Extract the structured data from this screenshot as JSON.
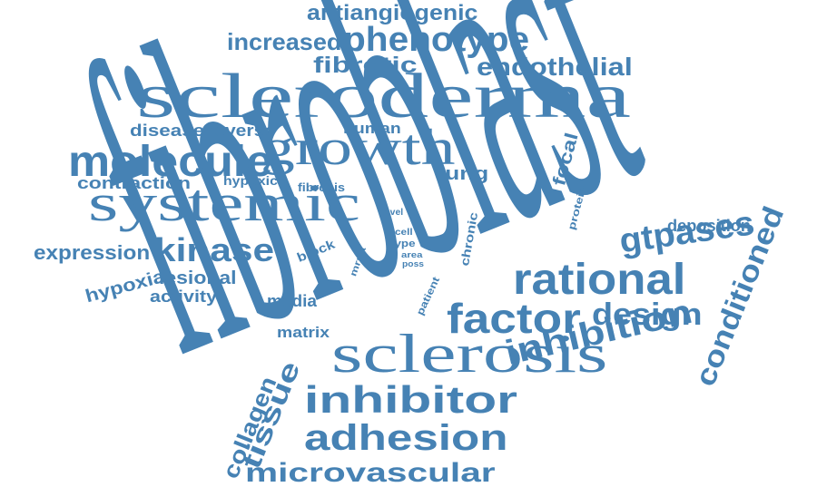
{
  "cloud": {
    "color": "#4682b4",
    "words": [
      {
        "id": "fibroblast",
        "text": "fibroblast"
      },
      {
        "id": "scleroderma",
        "text": "scleroderma"
      },
      {
        "id": "systemic",
        "text": "systemic"
      },
      {
        "id": "growth",
        "text": "growth"
      },
      {
        "id": "molecule",
        "text": "molecule"
      },
      {
        "id": "sclerosis",
        "text": "sclerosis"
      },
      {
        "id": "inhibitor",
        "text": "inhibitor"
      },
      {
        "id": "adhesion",
        "text": "adhesion"
      },
      {
        "id": "inhibition",
        "text": "inhibition"
      },
      {
        "id": "rational",
        "text": "rational"
      },
      {
        "id": "factor",
        "text": "factor"
      },
      {
        "id": "phenotype",
        "text": "phenotype"
      },
      {
        "id": "gtpases",
        "text": "gtpases"
      },
      {
        "id": "kinase",
        "text": "kinase"
      },
      {
        "id": "microvascular",
        "text": "microvascular"
      },
      {
        "id": "design",
        "text": "design"
      },
      {
        "id": "endothelial",
        "text": "endothelial"
      },
      {
        "id": "conditioned",
        "text": "conditioned"
      },
      {
        "id": "tissue",
        "text": "tissue"
      },
      {
        "id": "increased",
        "text": "increased"
      },
      {
        "id": "antiangiogenic",
        "text": "antiangiogenic"
      },
      {
        "id": "fibrotic",
        "text": "fibrotic"
      },
      {
        "id": "collagen",
        "text": "collagen"
      },
      {
        "id": "expression",
        "text": "expression"
      },
      {
        "id": "contraction",
        "text": "contraction"
      },
      {
        "id": "disease",
        "text": "disease"
      },
      {
        "id": "reverse",
        "text": "reverse"
      },
      {
        "id": "hypoxia",
        "text": "hypoxia"
      },
      {
        "id": "lesional",
        "text": "lesional"
      },
      {
        "id": "activity",
        "text": "activity"
      },
      {
        "id": "lung",
        "text": "lung"
      },
      {
        "id": "focal",
        "text": "focal"
      },
      {
        "id": "deposition",
        "text": "deposition"
      },
      {
        "id": "human",
        "text": "human"
      },
      {
        "id": "media",
        "text": "media"
      },
      {
        "id": "matrix",
        "text": "matrix"
      },
      {
        "id": "hypoxic",
        "text": "hypoxic"
      },
      {
        "id": "fibrosis",
        "text": "fibrosis"
      },
      {
        "id": "block",
        "text": "block"
      },
      {
        "id": "chronic",
        "text": "chronic"
      },
      {
        "id": "protein",
        "text": "protein"
      },
      {
        "id": "novel",
        "text": "novel"
      },
      {
        "id": "cell",
        "text": "cell"
      },
      {
        "id": "type",
        "text": "type"
      },
      {
        "id": "area",
        "text": "area"
      },
      {
        "id": "poss",
        "text": "poss"
      },
      {
        "id": "mrna",
        "text": "mrna"
      },
      {
        "id": "patient",
        "text": "patient"
      }
    ]
  }
}
